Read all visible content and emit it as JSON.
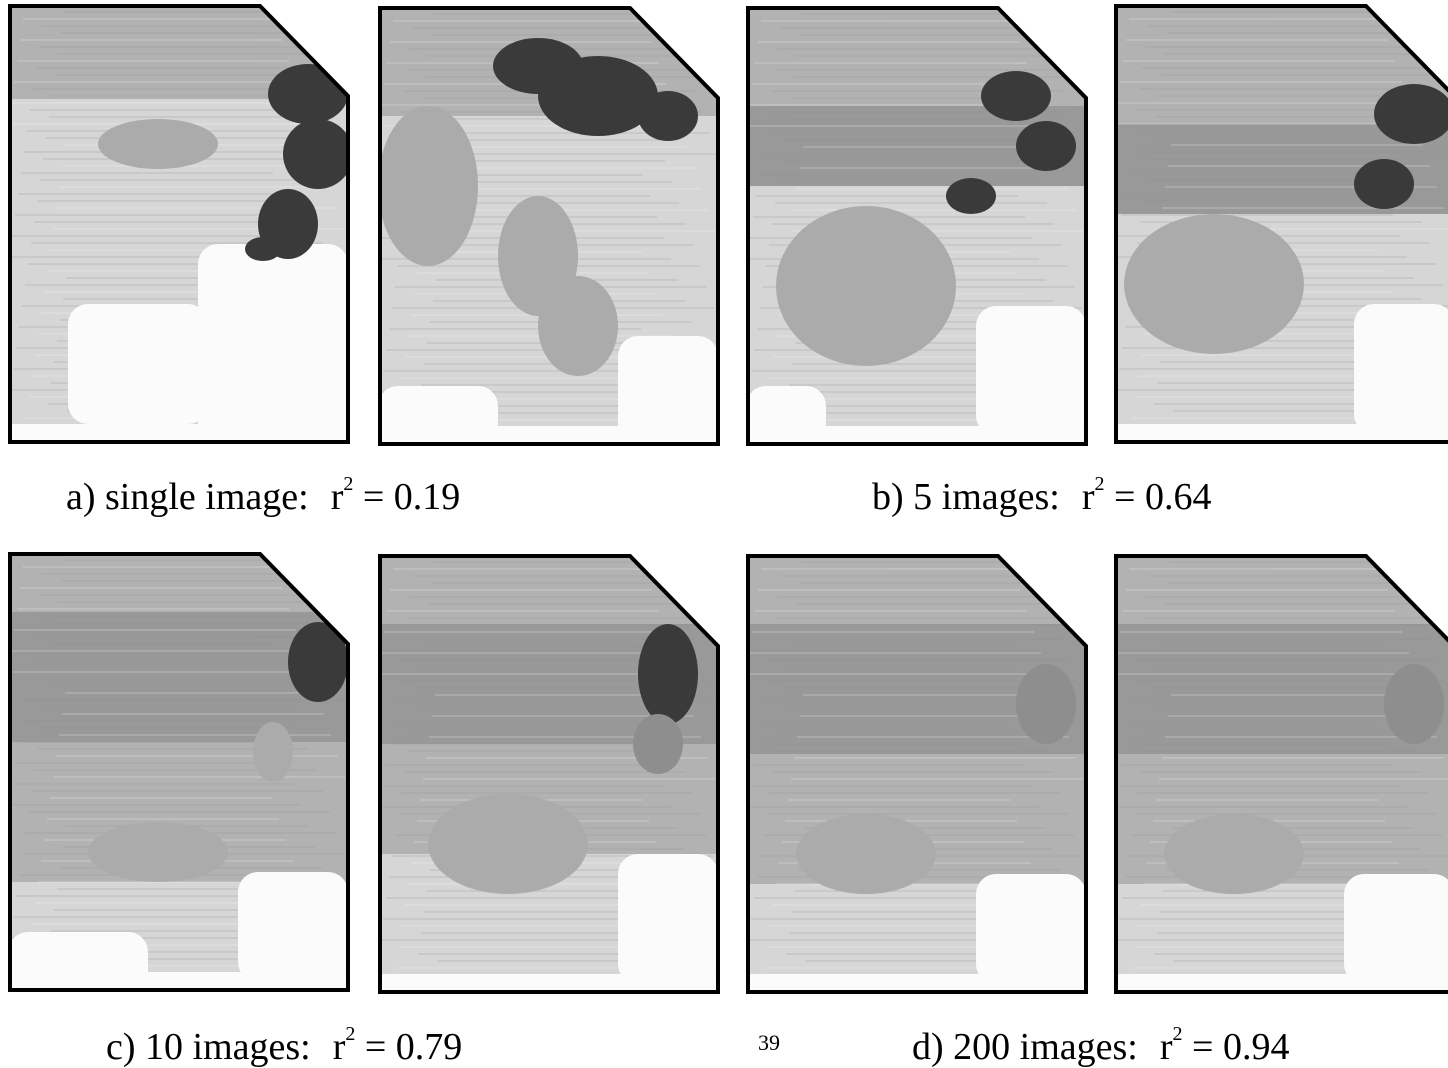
{
  "figure": {
    "captions": [
      {
        "label": "a) single image:",
        "r_symbol": "r",
        "exponent": "2",
        "equals": "= 0.19"
      },
      {
        "label": "b) 5 images:",
        "r_symbol": "r",
        "exponent": "2",
        "equals": "= 0.64"
      },
      {
        "label": "c) 10 images:",
        "r_symbol": "r",
        "exponent": "2",
        "equals": "= 0.79"
      },
      {
        "label": "d) 200 images:",
        "r_symbol": "r",
        "exponent": "2",
        "equals": "= 0.94"
      }
    ],
    "page_number": "39",
    "colors": {
      "white": "#fbfbfb",
      "light": "#d6d6d6",
      "medium": "#ababab",
      "mediumDark": "#8e8e8e",
      "dark": "#3a3a3a",
      "outline": "#000000"
    }
  }
}
